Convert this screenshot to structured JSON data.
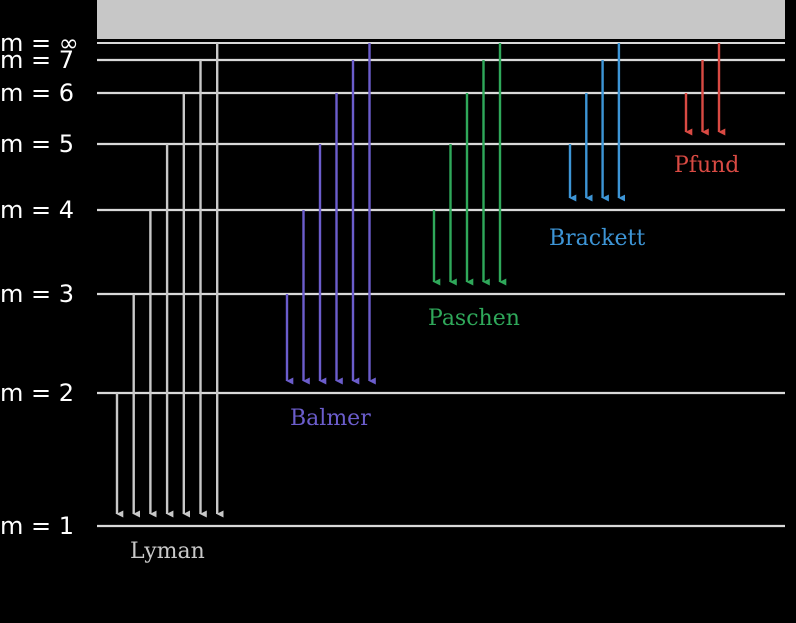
{
  "continuum": {
    "fill": "#c7c7c7"
  },
  "levels": [
    {
      "n": 1,
      "label": "m = 1"
    },
    {
      "n": 2,
      "label": "m = 2"
    },
    {
      "n": 3,
      "label": "m = 3"
    },
    {
      "n": 4,
      "label": "m = 4"
    },
    {
      "n": 5,
      "label": "m = 5"
    },
    {
      "n": 6,
      "label": "m = 6"
    },
    {
      "n": 7,
      "label": "m = 7"
    },
    {
      "n": "inf",
      "label": "m = ∞"
    }
  ],
  "series": [
    {
      "name": "Lyman",
      "lower": 1,
      "uppers": [
        2,
        3,
        4,
        5,
        6,
        7,
        "inf"
      ],
      "color": "#c8c8c8"
    },
    {
      "name": "Balmer",
      "lower": 2,
      "uppers": [
        3,
        4,
        5,
        6,
        7,
        "inf"
      ],
      "color": "#6b5dcc"
    },
    {
      "name": "Paschen",
      "lower": 3,
      "uppers": [
        4,
        5,
        6,
        7,
        "inf"
      ],
      "color": "#2fa85a"
    },
    {
      "name": "Brackett",
      "lower": 4,
      "uppers": [
        5,
        6,
        7,
        "inf"
      ],
      "color": "#3d95d6"
    },
    {
      "name": "Pfund",
      "lower": 5,
      "uppers": [
        6,
        7,
        "inf"
      ],
      "color": "#d94a43"
    }
  ]
}
